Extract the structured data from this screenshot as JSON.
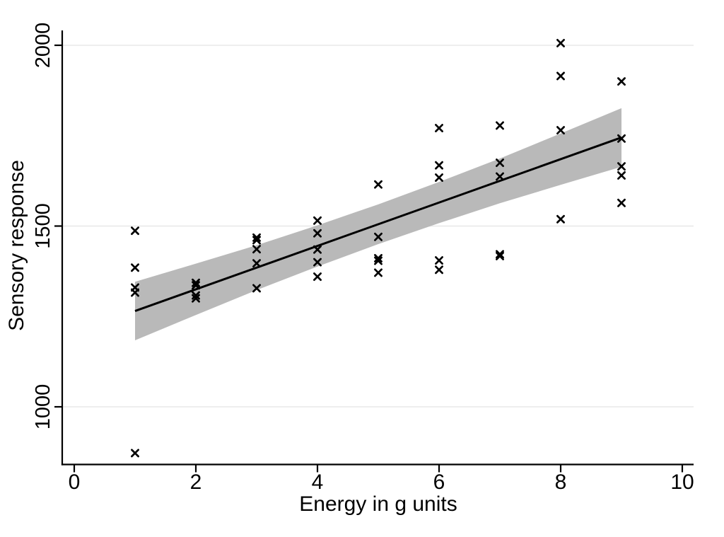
{
  "chart_data": {
    "type": "scatter",
    "title": "",
    "xlabel": "Energy in g units",
    "ylabel": "Sensory response",
    "xlim": [
      0,
      10.4
    ],
    "ylim": [
      855,
      2030
    ],
    "x_ticks": [
      0,
      2,
      4,
      6,
      8,
      10
    ],
    "y_ticks": [
      1000,
      1500,
      2000
    ],
    "grid": "horizontal-only",
    "legend": "none",
    "marker": "x",
    "points": [
      {
        "x": 1,
        "y": 1487
      },
      {
        "x": 1,
        "y": 1385
      },
      {
        "x": 1,
        "y": 1330
      },
      {
        "x": 1,
        "y": 1316
      },
      {
        "x": 1,
        "y": 872
      },
      {
        "x": 2,
        "y": 1343
      },
      {
        "x": 2,
        "y": 1336
      },
      {
        "x": 2,
        "y": 1308
      },
      {
        "x": 2,
        "y": 1300
      },
      {
        "x": 3,
        "y": 1468
      },
      {
        "x": 3,
        "y": 1461
      },
      {
        "x": 3,
        "y": 1436
      },
      {
        "x": 3,
        "y": 1397
      },
      {
        "x": 3,
        "y": 1328
      },
      {
        "x": 4,
        "y": 1515
      },
      {
        "x": 4,
        "y": 1480
      },
      {
        "x": 4,
        "y": 1435
      },
      {
        "x": 4,
        "y": 1400
      },
      {
        "x": 4,
        "y": 1360
      },
      {
        "x": 5,
        "y": 1615
      },
      {
        "x": 5,
        "y": 1470
      },
      {
        "x": 5,
        "y": 1411
      },
      {
        "x": 5,
        "y": 1404
      },
      {
        "x": 5,
        "y": 1371
      },
      {
        "x": 6,
        "y": 1771
      },
      {
        "x": 6,
        "y": 1668
      },
      {
        "x": 6,
        "y": 1634
      },
      {
        "x": 6,
        "y": 1405
      },
      {
        "x": 6,
        "y": 1379
      },
      {
        "x": 7,
        "y": 1778
      },
      {
        "x": 7,
        "y": 1675
      },
      {
        "x": 7,
        "y": 1637
      },
      {
        "x": 7,
        "y": 1422
      },
      {
        "x": 7,
        "y": 1417
      },
      {
        "x": 8,
        "y": 2006
      },
      {
        "x": 8,
        "y": 1915
      },
      {
        "x": 8,
        "y": 1765
      },
      {
        "x": 8,
        "y": 1519
      },
      {
        "x": 9,
        "y": 1900
      },
      {
        "x": 9,
        "y": 1742
      },
      {
        "x": 9,
        "y": 1665
      },
      {
        "x": 9,
        "y": 1640
      },
      {
        "x": 9,
        "y": 1564
      }
    ],
    "fit_line": {
      "x_start": 1,
      "y_start": 1265,
      "x_end": 9,
      "y_end": 1745
    },
    "confidence_band": [
      {
        "x": 1,
        "top": 1346,
        "bottom": 1184
      },
      {
        "x": 2,
        "top": 1396,
        "bottom": 1254
      },
      {
        "x": 3,
        "top": 1447,
        "bottom": 1323
      },
      {
        "x": 4,
        "top": 1502,
        "bottom": 1388
      },
      {
        "x": 5,
        "top": 1560,
        "bottom": 1450
      },
      {
        "x": 6,
        "top": 1622,
        "bottom": 1508
      },
      {
        "x": 7,
        "top": 1687,
        "bottom": 1563
      },
      {
        "x": 8,
        "top": 1756,
        "bottom": 1614
      },
      {
        "x": 9,
        "top": 1826,
        "bottom": 1664
      }
    ],
    "colors": {
      "marker": "#000000",
      "fit_line": "#000000",
      "band": "#b9b9b9",
      "grid": "#e8e8e8",
      "axis": "#000000",
      "background": "#ffffff"
    }
  }
}
